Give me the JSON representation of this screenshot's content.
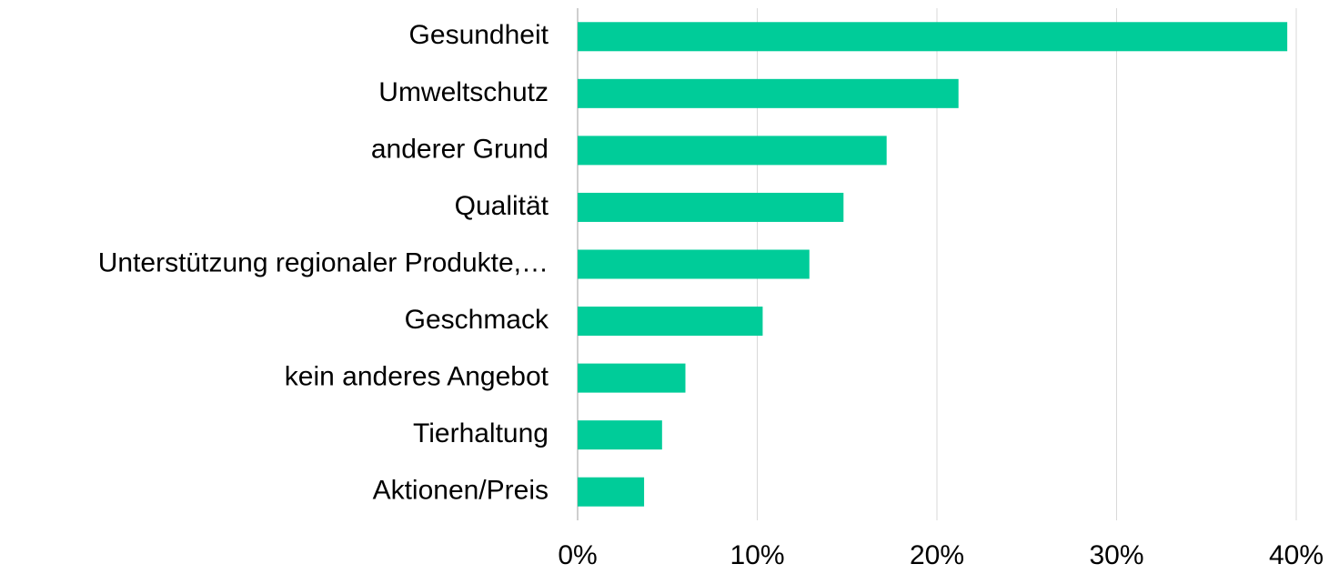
{
  "chart_data": {
    "type": "barh",
    "categories": [
      "Gesundheit",
      "Umweltschutz",
      "anderer Grund",
      "Qualität",
      "Unterstützung regionaler Produkte,…",
      "Geschmack",
      "kein anderes Angebot",
      "Tierhaltung",
      "Aktionen/Preis"
    ],
    "values": [
      39.5,
      21.2,
      17.2,
      14.8,
      12.9,
      10.3,
      6.0,
      4.7,
      3.7
    ],
    "color": "#00cc99",
    "xlim": [
      0,
      40
    ],
    "xticks": [
      {
        "value": 0,
        "label": "0%"
      },
      {
        "value": 10,
        "label": "10%"
      },
      {
        "value": 20,
        "label": "20%"
      },
      {
        "value": 30,
        "label": "30%"
      },
      {
        "value": 40,
        "label": "40%"
      }
    ],
    "grid": true
  }
}
